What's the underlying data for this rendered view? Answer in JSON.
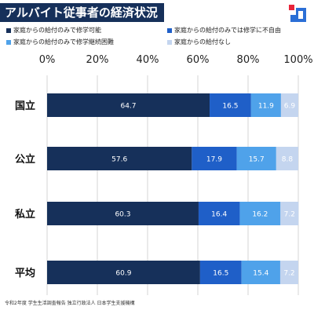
{
  "header": {
    "title": "アルバイト従事者の経済状況"
  },
  "footer": {
    "source": "令和2年度 学生生活調査報告  独立行政法人 日本学生支援機構"
  },
  "chart_data": {
    "type": "bar",
    "orientation": "horizontal",
    "stacked": true,
    "title": "アルバイト従事者の経済状況",
    "categories": [
      "国立",
      "公立",
      "私立",
      "平均"
    ],
    "xlim": [
      0,
      100
    ],
    "x_ticks": [
      "0%",
      "20%",
      "40%",
      "60%",
      "80%",
      "100%"
    ],
    "grid": true,
    "legend_position": "top",
    "series": [
      {
        "name": "家庭からの給付のみで修学可能",
        "color": "#16305a",
        "values": [
          64.7,
          57.6,
          60.3,
          60.9
        ]
      },
      {
        "name": "家庭からの給付のみでは修学に不自由",
        "color": "#1f5fc8",
        "values": [
          16.5,
          17.9,
          16.4,
          16.5
        ]
      },
      {
        "name": "家庭からの給付のみで修学継続困難",
        "color": "#4fa2ea",
        "values": [
          11.9,
          15.7,
          16.2,
          15.4
        ]
      },
      {
        "name": "家庭からの給付なし",
        "color": "#c4d5ef",
        "values": [
          6.9,
          8.8,
          7.2,
          7.2
        ]
      }
    ]
  }
}
